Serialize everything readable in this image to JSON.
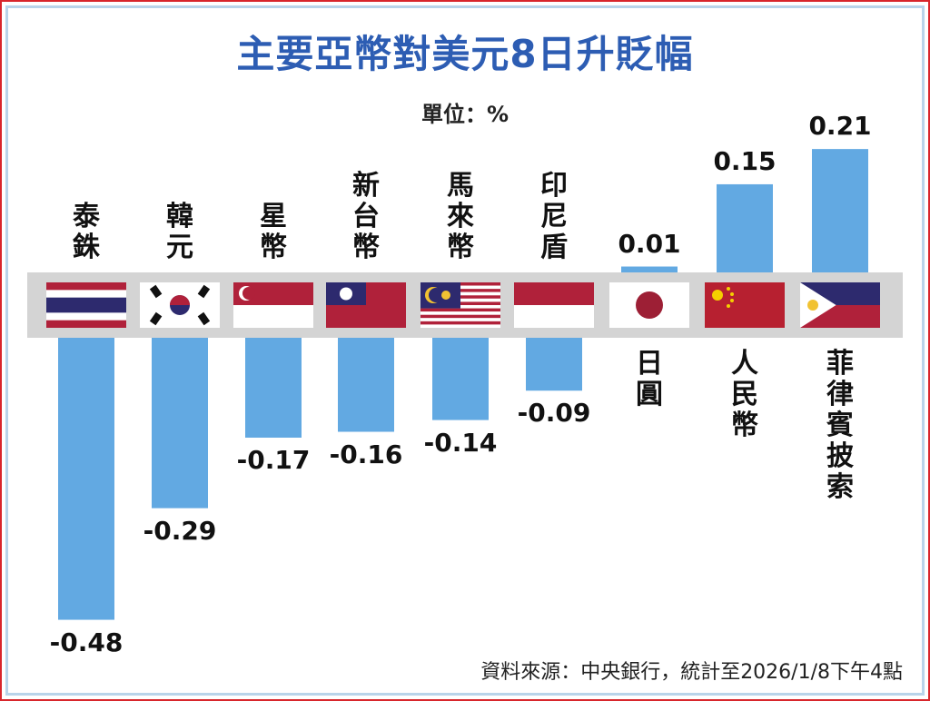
{
  "chart_data": {
    "type": "bar",
    "title": "主要亞幣對美元8日升貶幅",
    "unit_label": "單位：%",
    "source": "資料來源：中央銀行，統計至2026/1/8下午4點",
    "categories": [
      "泰銖",
      "韓元",
      "星幣",
      "新台幣",
      "馬來幣",
      "印尼盾",
      "日圓",
      "人民幣",
      "菲律賓披索"
    ],
    "values": [
      -0.48,
      -0.29,
      -0.17,
      -0.16,
      -0.14,
      -0.09,
      0.01,
      0.15,
      0.21
    ],
    "value_labels": [
      "-0.48",
      "-0.29",
      "-0.17",
      "-0.16",
      "-0.14",
      "-0.09",
      "0.01",
      "0.15",
      "0.21"
    ],
    "flags": [
      "thailand-flag-icon",
      "south-korea-flag-icon",
      "singapore-flag-icon",
      "taiwan-flag-icon",
      "malaysia-flag-icon",
      "indonesia-flag-icon",
      "japan-flag-icon",
      "china-flag-icon",
      "philippines-flag-icon"
    ],
    "bar_color": "#62a9e2",
    "title_color": "#2d5db3",
    "grid": false
  }
}
